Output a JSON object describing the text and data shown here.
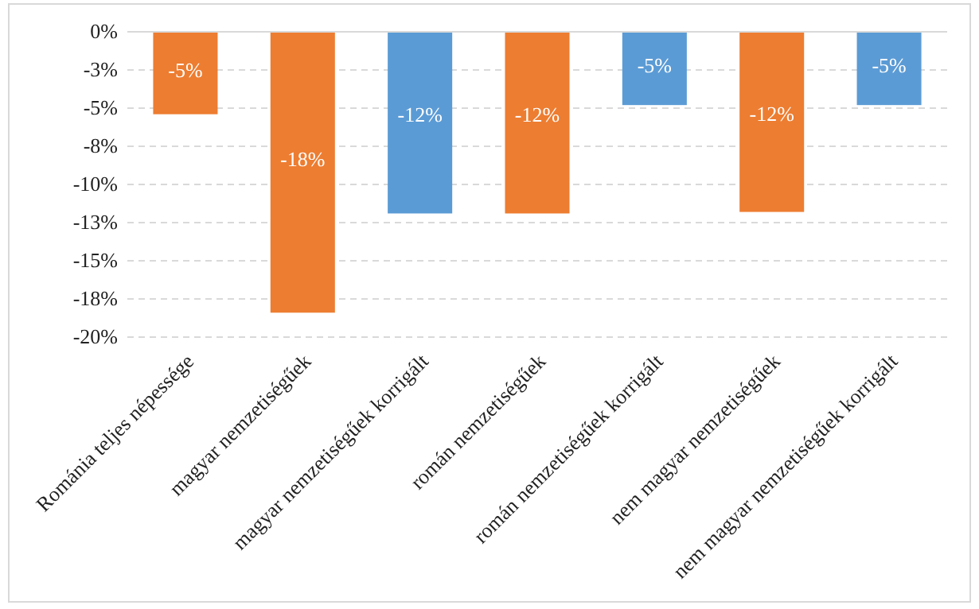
{
  "chart_data": {
    "type": "bar",
    "categories": [
      "Románia teljes népessége",
      "magyar nemzetiségűek",
      "magyar nemzetiségűek korrigált",
      "román nemzetiségűek",
      "román nemzetiségűek korrigált",
      "nem magyar nemzetiségűek",
      "nem magyar nemzetiségűek korrigált"
    ],
    "values": [
      -5.4,
      -18.4,
      -11.9,
      -11.9,
      -4.8,
      -11.8,
      -4.8
    ],
    "colors": [
      "#ed7d31",
      "#ed7d31",
      "#5b9bd5",
      "#ed7d31",
      "#5b9bd5",
      "#ed7d31",
      "#5b9bd5"
    ],
    "value_labels": [
      "-5%",
      "-18%",
      "-12%",
      "-12%",
      "-5%",
      "-12%",
      "-5%"
    ],
    "ylim": [
      -20,
      0
    ],
    "yticks": [
      {
        "value": 0,
        "label": "0%"
      },
      {
        "value": -2.5,
        "label": "-3%"
      },
      {
        "value": -5,
        "label": "-5%"
      },
      {
        "value": -7.5,
        "label": "-8%"
      },
      {
        "value": -10,
        "label": "-10%"
      },
      {
        "value": -12.5,
        "label": "-13%"
      },
      {
        "value": -15,
        "label": "-15%"
      },
      {
        "value": -17.5,
        "label": "-18%"
      },
      {
        "value": -20,
        "label": "-20%"
      }
    ],
    "grid": "y"
  }
}
